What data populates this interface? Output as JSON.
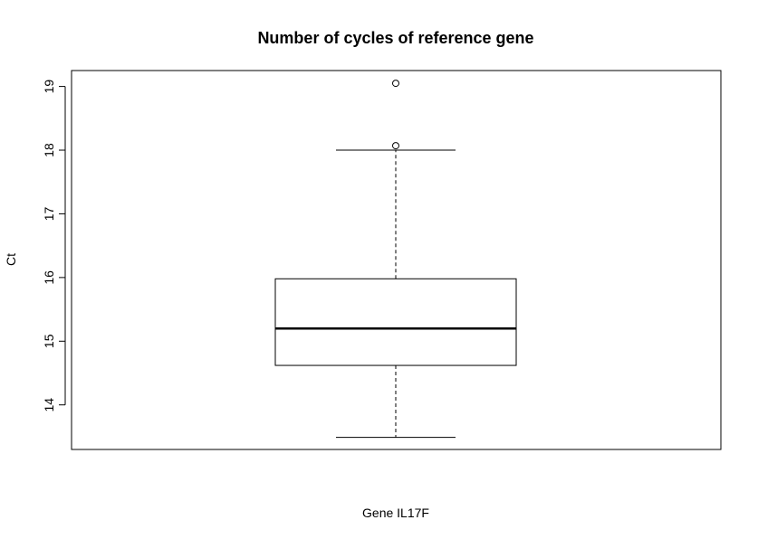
{
  "chart_data": {
    "type": "box",
    "title": "Number of cycles of reference gene",
    "xlabel": "Gene IL17F",
    "ylabel": "Ct",
    "ylim": [
      13.3,
      19.25
    ],
    "yticks": [
      14,
      15,
      16,
      17,
      18,
      19
    ],
    "ytick_labels": [
      "14",
      "15",
      "16",
      "17",
      "18",
      "19"
    ],
    "grid": false,
    "box": {
      "whisker_low": 13.49,
      "q1": 14.62,
      "median": 15.2,
      "q3": 15.98,
      "whisker_high": 18.0,
      "outliers": [
        18.07,
        19.05
      ]
    }
  }
}
